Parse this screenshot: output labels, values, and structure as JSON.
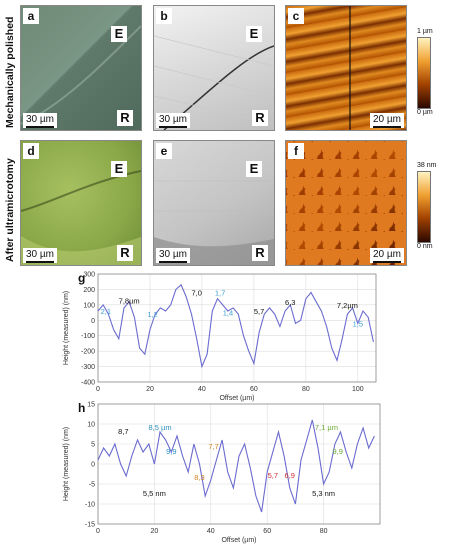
{
  "rows": {
    "top": "Mechanically polished",
    "bottom": "After ultramicrotomy"
  },
  "panels": {
    "a": {
      "letter": "a",
      "marks": [
        "E",
        "R"
      ],
      "scale": "30 µm"
    },
    "b": {
      "letter": "b",
      "marks": [
        "E",
        "R"
      ],
      "scale": "30 µm"
    },
    "c": {
      "letter": "c",
      "scale": "20 µm"
    },
    "d": {
      "letter": "d",
      "marks": [
        "E",
        "R"
      ],
      "scale": "30 µm"
    },
    "e": {
      "letter": "e",
      "marks": [
        "E",
        "R"
      ],
      "scale": "30 µm"
    },
    "f": {
      "letter": "f",
      "scale": "20 µm"
    }
  },
  "colorbars": {
    "c": {
      "max": "1 µm",
      "min": "0 µm"
    },
    "f": {
      "max": "38 nm",
      "min": "0 nm"
    }
  },
  "colors": {
    "profile": "#6b6bd0",
    "grid": "#dddddd",
    "afm_dark": "#5a1a00",
    "afm_light": "#ffe090"
  },
  "chart_data": [
    {
      "type": "line",
      "panel": "g",
      "xlabel": "Offset (µm)",
      "ylabel": "Height (measured) (nm)",
      "xlim": [
        0,
        107
      ],
      "ylim": [
        -400,
        300
      ],
      "xticks": [
        0,
        20,
        40,
        60,
        80,
        100
      ],
      "yticks": [
        -400,
        -300,
        -200,
        -100,
        0,
        100,
        200,
        300
      ],
      "grid": true,
      "x": [
        0,
        2,
        4,
        6,
        8,
        10,
        12,
        14,
        16,
        18,
        20,
        22,
        24,
        26,
        28,
        30,
        32,
        34,
        36,
        38,
        40,
        42,
        44,
        46,
        48,
        50,
        52,
        54,
        56,
        58,
        60,
        62,
        64,
        66,
        68,
        70,
        72,
        74,
        76,
        78,
        80,
        82,
        84,
        86,
        88,
        90,
        92,
        94,
        96,
        98,
        100,
        102,
        104,
        106
      ],
      "y": [
        60,
        100,
        40,
        -60,
        -120,
        80,
        120,
        20,
        -180,
        -220,
        -60,
        40,
        80,
        60,
        100,
        200,
        230,
        150,
        40,
        -120,
        -300,
        -220,
        60,
        140,
        100,
        60,
        80,
        40,
        -100,
        -200,
        -280,
        -80,
        40,
        80,
        40,
        -40,
        60,
        100,
        -20,
        0,
        140,
        180,
        120,
        60,
        -40,
        -180,
        -260,
        -120,
        40,
        80,
        -20,
        60,
        20,
        -140
      ],
      "annotations": [
        {
          "text": "2,1",
          "x": 3,
          "y": 40
        },
        {
          "text": "7,8µm",
          "x": 12,
          "y": 110
        },
        {
          "text": "1,2",
          "x": 21,
          "y": 20
        },
        {
          "text": "7,0",
          "x": 38,
          "y": 160
        },
        {
          "text": "1,7",
          "x": 47,
          "y": 160
        },
        {
          "text": "1,4",
          "x": 50,
          "y": 30
        },
        {
          "text": "5,7",
          "x": 62,
          "y": 40
        },
        {
          "text": "6,3",
          "x": 74,
          "y": 100
        },
        {
          "text": "7,2µm",
          "x": 96,
          "y": 80
        },
        {
          "text": "1,5",
          "x": 100,
          "y": -40
        }
      ]
    },
    {
      "type": "line",
      "panel": "h",
      "xlabel": "Offset (µm)",
      "ylabel": "Height (measured) (nm)",
      "xlim": [
        0,
        100
      ],
      "ylim": [
        -15,
        15
      ],
      "xticks": [
        0,
        20,
        40,
        60,
        80
      ],
      "yticks": [
        -15,
        -10,
        -5,
        0,
        5,
        10,
        15
      ],
      "grid": true,
      "x": [
        0,
        2,
        4,
        6,
        8,
        10,
        12,
        14,
        16,
        18,
        20,
        22,
        24,
        26,
        28,
        30,
        32,
        34,
        36,
        38,
        40,
        42,
        44,
        46,
        48,
        50,
        52,
        54,
        56,
        58,
        60,
        62,
        64,
        66,
        68,
        70,
        72,
        74,
        76,
        78,
        80,
        82,
        84,
        86,
        88,
        90,
        92,
        94,
        96,
        98
      ],
      "y": [
        1,
        4,
        2,
        5,
        0,
        -3,
        2,
        6,
        3,
        5,
        0,
        8,
        6,
        3,
        7,
        2,
        -2,
        5,
        0,
        -8,
        -4,
        1,
        6,
        -2,
        -6,
        2,
        5,
        -1,
        -8,
        -12,
        -2,
        3,
        8,
        2,
        -6,
        -10,
        1,
        6,
        11,
        4,
        -5,
        -2,
        5,
        8,
        3,
        -1,
        5,
        9,
        4,
        7
      ],
      "annotations": [
        {
          "text": "8,7",
          "x": 9,
          "y": 7.5
        },
        {
          "text": "8,5 µm",
          "x": 22,
          "y": 8.5
        },
        {
          "text": "9,9",
          "x": 26,
          "y": 2.5
        },
        {
          "text": "7,7",
          "x": 41,
          "y": 3.8
        },
        {
          "text": "8,3",
          "x": 36,
          "y": -4
        },
        {
          "text": "5,5 nm",
          "x": 20,
          "y": -8
        },
        {
          "text": "5,7",
          "x": 62,
          "y": -3.5
        },
        {
          "text": "6,9",
          "x": 68,
          "y": -3.5
        },
        {
          "text": "7,1 µm",
          "x": 81,
          "y": 8.5
        },
        {
          "text": "9,9",
          "x": 85,
          "y": 2.5
        },
        {
          "text": "5,3 nm",
          "x": 80,
          "y": -8
        }
      ]
    }
  ]
}
